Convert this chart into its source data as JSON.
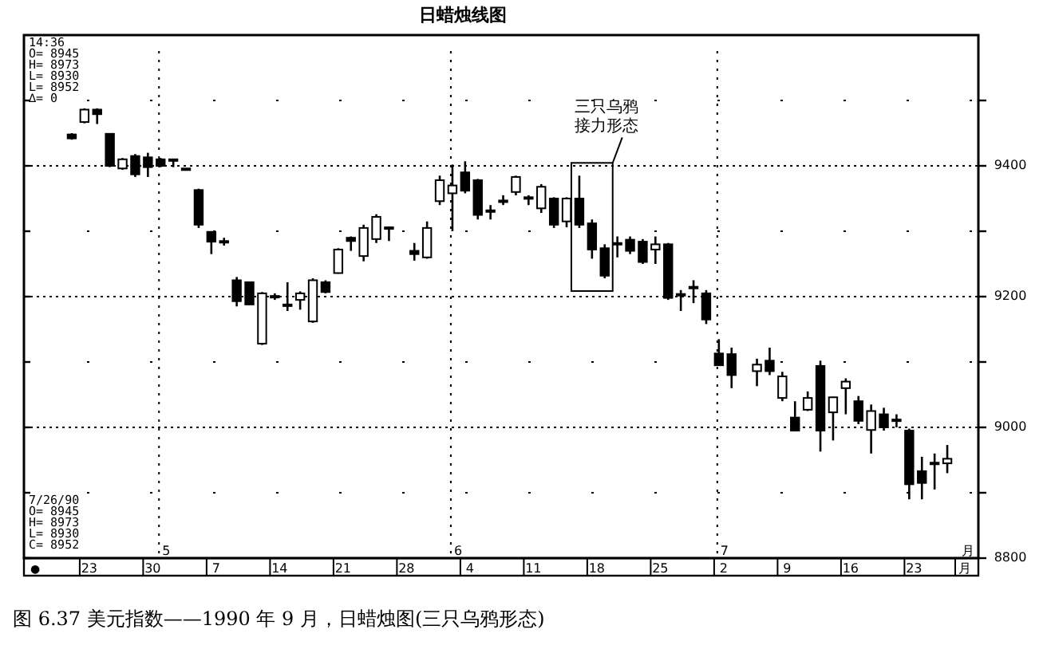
{
  "chart_data": {
    "type": "candlestick",
    "title": "日蜡烛线图",
    "categories": [
      null,
      "23",
      null,
      null,
      null,
      null,
      "30",
      null,
      null,
      null,
      null,
      "7",
      null,
      null,
      null,
      null,
      "14",
      null,
      null,
      null,
      null,
      "21",
      null,
      null,
      null,
      null,
      "28",
      null,
      null,
      null,
      null,
      "4",
      null,
      null,
      null,
      null,
      "11",
      null,
      null,
      null,
      null,
      "18",
      null,
      null,
      null,
      null,
      "25",
      null,
      null,
      null,
      null,
      "2",
      null,
      null,
      null,
      null,
      "9",
      null,
      null,
      null,
      null,
      "16",
      null,
      null,
      null,
      null,
      "23",
      null,
      null,
      null,
      "月"
    ],
    "ohlc": [
      [
        9448,
        9450,
        9440,
        9442
      ],
      [
        9467,
        9488,
        9465,
        9486
      ],
      [
        9486,
        9488,
        9464,
        9479
      ],
      [
        9449,
        9450,
        9398,
        9400
      ],
      [
        9396,
        9412,
        9394,
        9410
      ],
      [
        9415,
        9418,
        9383,
        9387
      ],
      [
        9413,
        9420,
        9383,
        9398
      ],
      [
        9410,
        9412,
        9398,
        9400
      ],
      [
        9410,
        9411,
        9398,
        9409
      ],
      [
        9396,
        9396,
        9393,
        9394
      ],
      [
        9363,
        9365,
        9305,
        9310
      ],
      [
        9299,
        9300,
        9265,
        9284
      ],
      [
        9285,
        9290,
        9278,
        9283
      ],
      [
        9225,
        9230,
        9185,
        9193
      ],
      [
        9222,
        9223,
        9188,
        9188
      ],
      [
        9128,
        9207,
        9126,
        9205
      ],
      [
        9200,
        9205,
        9195,
        9201
      ],
      [
        9188,
        9222,
        9178,
        9186
      ],
      [
        9195,
        9208,
        9180,
        9205
      ],
      [
        9162,
        9228,
        9160,
        9225
      ],
      [
        9222,
        9225,
        9205,
        9207
      ],
      [
        9236,
        9274,
        9235,
        9272
      ],
      [
        9290,
        9292,
        9270,
        9285
      ],
      [
        9262,
        9310,
        9254,
        9305
      ],
      [
        9288,
        9326,
        9282,
        9322
      ],
      [
        9306,
        9307,
        9285,
        9304
      ],
      null,
      [
        9270,
        9282,
        9255,
        9265
      ],
      [
        9260,
        9315,
        9258,
        9305
      ],
      [
        9346,
        9385,
        9340,
        9378
      ],
      [
        9358,
        9402,
        9300,
        9370
      ],
      [
        9390,
        9407,
        9358,
        9362
      ],
      [
        9378,
        9380,
        9318,
        9325
      ],
      [
        9330,
        9340,
        9318,
        9332
      ],
      [
        9345,
        9355,
        9340,
        9347
      ],
      [
        9360,
        9385,
        9355,
        9383
      ],
      [
        9350,
        9355,
        9340,
        9352
      ],
      [
        9335,
        9372,
        9328,
        9368
      ],
      [
        9350,
        9352,
        9305,
        9310
      ],
      [
        9315,
        9352,
        9306,
        9350
      ],
      [
        9350,
        9385,
        9305,
        9310
      ],
      [
        9312,
        9318,
        9258,
        9272
      ],
      [
        9274,
        9280,
        9228,
        9232
      ],
      [
        9280,
        9292,
        9260,
        9282
      ],
      [
        9287,
        9292,
        9265,
        9270
      ],
      [
        9284,
        9288,
        9250,
        9253
      ],
      [
        9272,
        9292,
        9250,
        9280
      ],
      [
        9280,
        9282,
        9195,
        9198
      ],
      [
        9203,
        9210,
        9178,
        9204
      ],
      [
        9215,
        9225,
        9190,
        9213
      ],
      [
        9205,
        9210,
        9158,
        9165
      ],
      [
        9113,
        9135,
        9094,
        9095
      ],
      [
        9112,
        9122,
        9060,
        9080
      ],
      null,
      [
        9086,
        9105,
        9063,
        9096
      ],
      [
        9102,
        9122,
        9080,
        9086
      ],
      [
        9045,
        9085,
        9040,
        9078
      ],
      [
        9015,
        9040,
        8995,
        8995
      ],
      [
        9027,
        9055,
        9025,
        9045
      ],
      [
        9094,
        9102,
        8963,
        8995
      ],
      [
        9023,
        9047,
        8980,
        9046
      ],
      [
        9060,
        9075,
        9020,
        9070
      ],
      [
        9040,
        9048,
        9005,
        9010
      ],
      [
        8996,
        9035,
        8960,
        9025
      ],
      [
        9020,
        9030,
        8995,
        9000
      ],
      [
        9012,
        9020,
        9000,
        9010
      ],
      [
        8995,
        8998,
        8890,
        8913
      ],
      [
        8933,
        8955,
        8890,
        8915
      ],
      [
        8946,
        8960,
        8905,
        8945
      ],
      [
        8945,
        8973,
        8930,
        8952
      ],
      null
    ],
    "ylim": [
      8800,
      9600
    ],
    "yticks": [
      8800,
      {
        "value": 8900,
        "label": null
      },
      9000,
      {
        "value": 9100,
        "label": null
      },
      9200,
      {
        "value": 9300,
        "label": null
      },
      9400,
      {
        "value": 9500,
        "label": null
      }
    ],
    "grid": "y",
    "annotations": [
      "14:36\nO= 8945\nH= 8973\nL= 8930\nL= 8952\n∆= 0",
      "7/26/90\nO= 8945\nH= 8973\nL= 8930\nC= 8952",
      "5",
      "6",
      "7",
      "月",
      "●",
      "三只乌鸦",
      "接力形态",
      "图 6.37  美元指数——1990 年 9 月，日蜡烛图(三只乌鸦形态)"
    ]
  }
}
